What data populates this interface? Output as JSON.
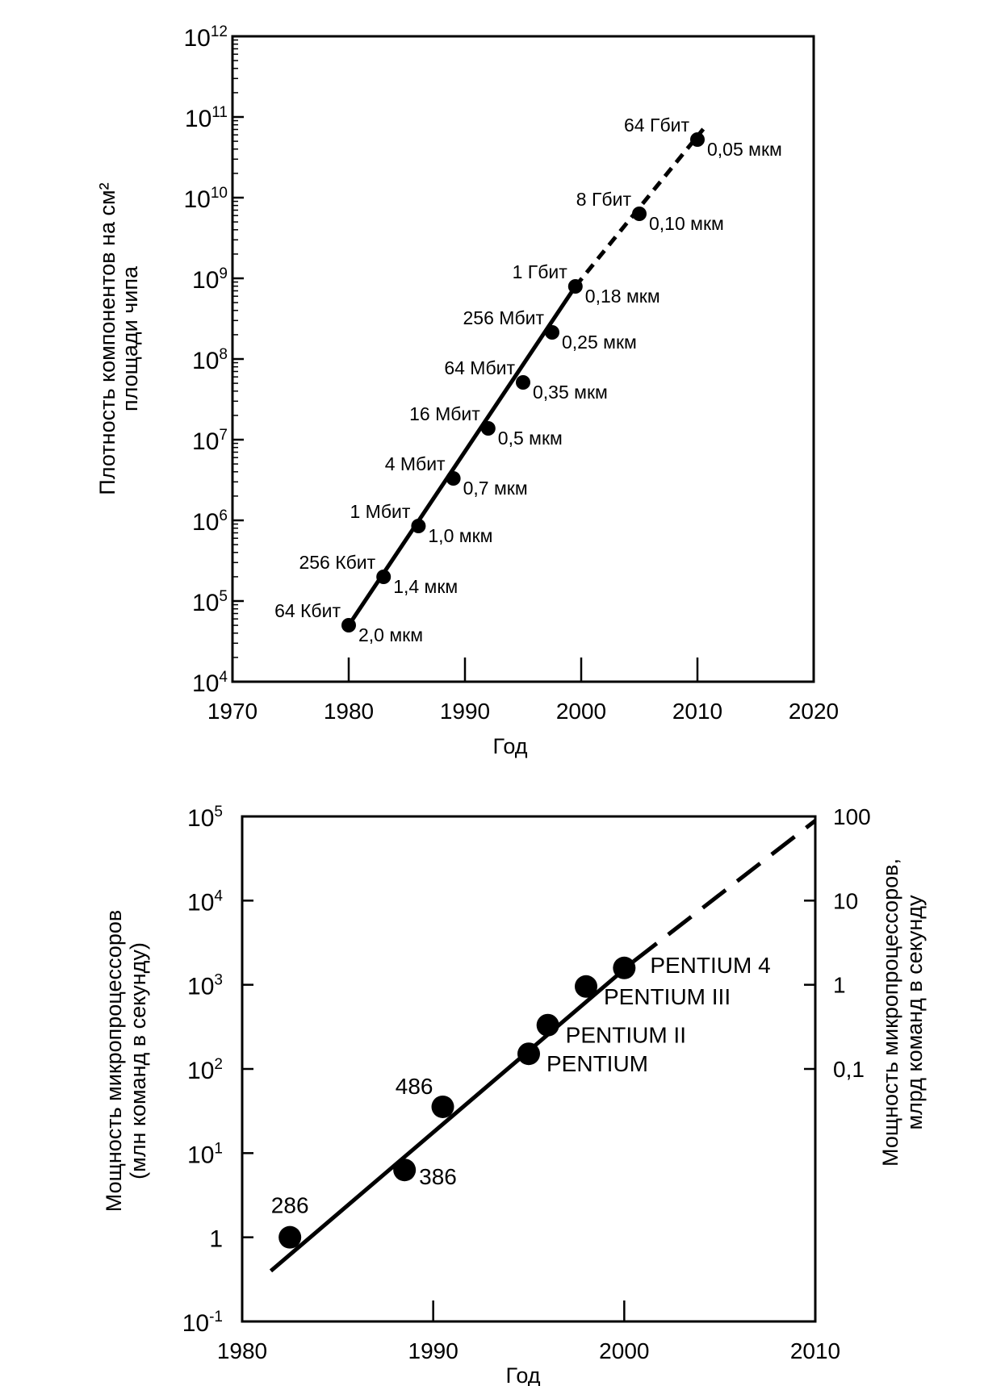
{
  "chart_data": [
    {
      "type": "scatter",
      "title": "",
      "xlabel": "Год",
      "ylabel_lines": [
        "Плотность компонентов на см²",
        "площади чипа"
      ],
      "xlim": [
        1970,
        2020
      ],
      "ylim_exp": [
        4,
        12
      ],
      "y_scale": "log",
      "x_ticks": [
        1970,
        1980,
        1990,
        2000,
        2010,
        2020
      ],
      "x_tick_labels": [
        "1970",
        "1980",
        "1990",
        "2000",
        "2010",
        "2020"
      ],
      "y_tick_exponents": [
        4,
        5,
        6,
        7,
        8,
        9,
        10,
        11,
        12
      ],
      "y_tick_base": "10",
      "y_tick_exps_text": [
        "4",
        "5",
        "6",
        "7",
        "8",
        "9",
        "10",
        "11",
        "12"
      ],
      "grid": false,
      "points": [
        {
          "x": 1980,
          "y_exp": 4.7,
          "label": "64 Кбит",
          "size": "2,0 мкм"
        },
        {
          "x": 1983,
          "y_exp": 5.3,
          "label": "256 Кбит",
          "size": "1,4 мкм"
        },
        {
          "x": 1986,
          "y_exp": 5.93,
          "label": "1 Мбит",
          "size": "1,0 мкм"
        },
        {
          "x": 1989,
          "y_exp": 6.52,
          "label": "4 Мбит",
          "size": "0,7 мкм"
        },
        {
          "x": 1992,
          "y_exp": 7.14,
          "label": "16 Мбит",
          "size": "0,5 мкм"
        },
        {
          "x": 1995,
          "y_exp": 7.71,
          "label": "64 Мбит",
          "size": "0,35 мкм"
        },
        {
          "x": 1997.5,
          "y_exp": 8.33,
          "label": "256 Мбит",
          "size": "0,25 мкм"
        },
        {
          "x": 1999.5,
          "y_exp": 8.9,
          "label": "1 Гбит",
          "size": "0,18 мкм"
        },
        {
          "x": 2005,
          "y_exp": 9.8,
          "label": "8 Гбит",
          "size": "0,10 мкм"
        },
        {
          "x": 2010,
          "y_exp": 10.72,
          "label": "64 Гбит",
          "size": "0,05 мкм"
        }
      ],
      "solid_line": {
        "x": [
          1980,
          1999.5
        ],
        "y_exp": [
          4.7,
          8.9
        ]
      },
      "dashed_line": {
        "x": [
          1999.5,
          2010.5
        ],
        "y_exp": [
          8.9,
          10.85
        ]
      }
    },
    {
      "type": "scatter",
      "title": "",
      "xlabel": "Год",
      "ylabel_lines": [
        "Мощность микропроцессоров",
        "(млн команд в секунду)"
      ],
      "y2label_lines": [
        "Мощность микропроцессоров,",
        "млрд команд в секунду"
      ],
      "xlim": [
        1980,
        2010
      ],
      "ylim_exp": [
        -1,
        5
      ],
      "y_scale": "log",
      "x_ticks": [
        1980,
        1990,
        2000,
        2010
      ],
      "x_tick_labels": [
        "1980",
        "1990",
        "2000",
        "2010"
      ],
      "y_ticks": [
        {
          "exp": -1,
          "base": "10",
          "sup": "-1"
        },
        {
          "exp": 0,
          "base": "1",
          "sup": ""
        },
        {
          "exp": 1,
          "base": "10",
          "sup": "1"
        },
        {
          "exp": 2,
          "base": "10",
          "sup": "2"
        },
        {
          "exp": 3,
          "base": "10",
          "sup": "3"
        },
        {
          "exp": 4,
          "base": "10",
          "sup": "4"
        },
        {
          "exp": 5,
          "base": "10",
          "sup": "5"
        }
      ],
      "y2_ticks": [
        {
          "exp": 5,
          "label": "100"
        },
        {
          "exp": 4,
          "label": "10"
        },
        {
          "exp": 3,
          "label": "1"
        },
        {
          "exp": 2,
          "label": "0,1"
        }
      ],
      "grid": false,
      "points": [
        {
          "x": 1982.5,
          "y_exp": 0,
          "label": "286"
        },
        {
          "x": 1988.5,
          "y_exp": 0.8,
          "label": "386"
        },
        {
          "x": 1990.5,
          "y_exp": 1.55,
          "label": "486"
        },
        {
          "x": 1995,
          "y_exp": 2.18,
          "label": "PENTIUM"
        },
        {
          "x": 1996,
          "y_exp": 2.52,
          "label": "PENTIUM II"
        },
        {
          "x": 1998,
          "y_exp": 2.98,
          "label": "PENTIUM III"
        },
        {
          "x": 2000,
          "y_exp": 3.2,
          "label": "PENTIUM 4"
        }
      ],
      "solid_line": {
        "x": [
          1981.5,
          2000.5
        ],
        "y_exp": [
          -0.4,
          3.28
        ]
      },
      "dashed_line": {
        "x": [
          2000.5,
          2010
        ],
        "y_exp": [
          3.28,
          4.95
        ]
      }
    }
  ]
}
